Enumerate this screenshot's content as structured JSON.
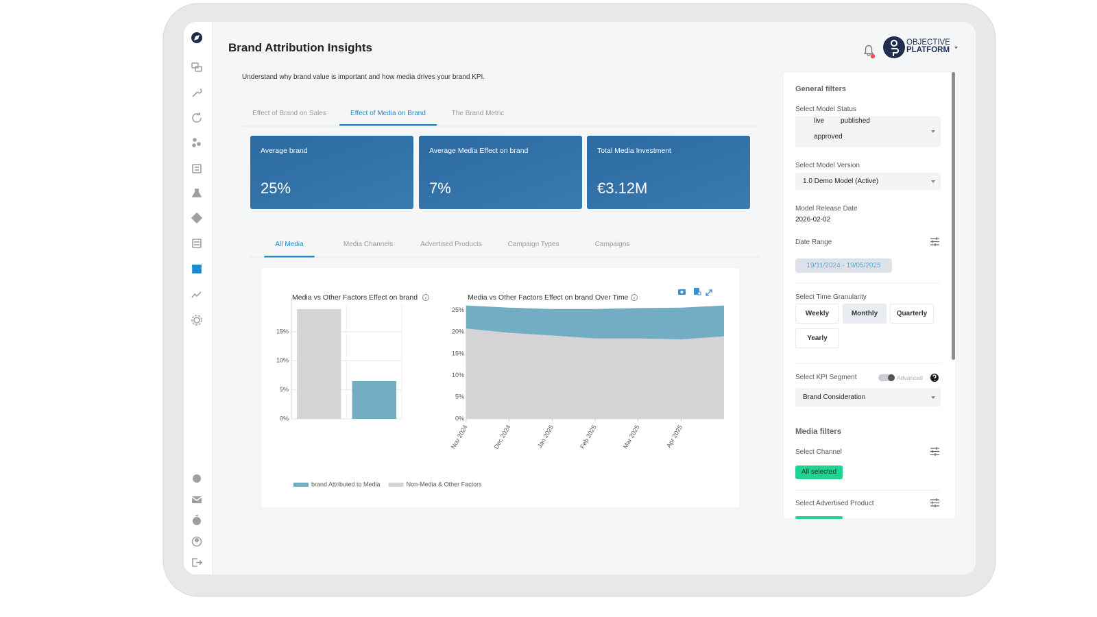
{
  "header": {
    "title": "Brand Attribution Insights",
    "description": "Understand why brand value is important and how media drives your brand KPI.",
    "logo_top": "OBJECTIVE",
    "logo_bottom": "PLATFORM"
  },
  "tabs": {
    "items": [
      "Effect of Brand on Sales",
      "Effect of Media on Brand",
      "The Brand Metric"
    ],
    "active": 1
  },
  "kpis": [
    {
      "label": "Average brand",
      "value": "25%"
    },
    {
      "label": "Average Media Effect on brand",
      "value": "7%"
    },
    {
      "label": "Total Media Investment",
      "value": "€3.12M"
    }
  ],
  "subtabs": {
    "items": [
      "All Media",
      "Media Channels",
      "Advertised Products",
      "Campaign Types",
      "Campaigns"
    ],
    "active": 0
  },
  "chart_data": [
    {
      "type": "bar",
      "title": "Media vs Other Factors Effect on brand",
      "categories": [
        null,
        null
      ],
      "series": [
        {
          "name": "brand Attributed to Media",
          "color": "#72adc4",
          "values": [
            null,
            6.5
          ]
        },
        {
          "name": "Non-Media & Other Factors",
          "color": "#d4d4d6",
          "values": [
            18.9,
            null
          ]
        }
      ],
      "ylim": [
        0,
        19.6
      ],
      "yticks": [
        {
          "value": 0,
          "label": "0%"
        },
        {
          "value": 5,
          "label": "5%"
        },
        {
          "value": 10,
          "label": "10%"
        },
        {
          "value": 15,
          "label": "15%"
        }
      ],
      "grid": true
    },
    {
      "type": "area",
      "stacked": true,
      "title": "Media vs Other Factors Effect on brand Over Time",
      "x": [
        "Nov 2024",
        "Dec 2024",
        "Jan 2025",
        "Feb 2025",
        "Mar 2025",
        "Apr 2025",
        null
      ],
      "series": [
        {
          "name": "Non-Media & Other Factors",
          "color": "#d4d4d6",
          "values": [
            20.8,
            19.8,
            19.2,
            18.5,
            18.5,
            18.3,
            19.0
          ]
        },
        {
          "name": "brand Attributed to Media",
          "color": "#72adc4",
          "values": [
            5.3,
            5.8,
            6.1,
            6.8,
            7.0,
            7.3,
            7.1
          ]
        }
      ],
      "ylim": [
        0,
        26.2
      ],
      "yticks": [
        {
          "value": 0,
          "label": "0%"
        },
        {
          "value": 5,
          "label": "5%"
        },
        {
          "value": 10,
          "label": "10%"
        },
        {
          "value": 15,
          "label": "15%"
        },
        {
          "value": 20,
          "label": "20%"
        },
        {
          "value": 25,
          "label": "25%"
        }
      ],
      "grid": true
    }
  ],
  "filters": {
    "general_title": "General filters",
    "model_status": {
      "label": "Select Model Status",
      "selected": [
        "live",
        "published",
        "approved"
      ]
    },
    "model_version": {
      "label": "Select Model Version",
      "value": "1.0 Demo Model (Active)"
    },
    "release_date": {
      "label": "Model Release Date",
      "value": "2026-02-02"
    },
    "date_range": {
      "label": "Date Range",
      "value": "19/11/2024 - 19/05/2025"
    },
    "granularity": {
      "label": "Select Time Granularity",
      "options": [
        "Weekly",
        "Monthly",
        "Quarterly",
        "Yearly"
      ],
      "active": 1
    },
    "kpi_segment": {
      "label": "Select KPI Segment",
      "toggle": "Advanced",
      "value": "Brand Consideration"
    },
    "media_title": "Media filters",
    "channel": {
      "label": "Select Channel",
      "value": "All selected"
    },
    "advertised_product": {
      "label": "Select Advertised Product"
    }
  }
}
